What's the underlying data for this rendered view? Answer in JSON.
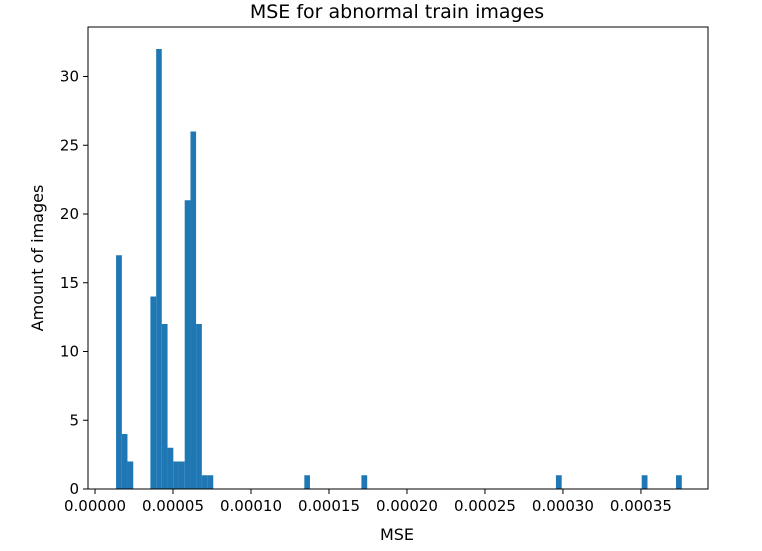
{
  "chart_data": {
    "type": "bar",
    "title": "MSE for abnormal train images",
    "xlabel": "MSE",
    "ylabel": "Amount of images",
    "xlim": [
      -4.5e-06,
      0.000393
    ],
    "ylim": [
      0,
      33.6
    ],
    "grid": false,
    "color": "#1f77b4",
    "xticks": [
      0.0,
      5e-05,
      0.0001,
      0.00015,
      0.0002,
      0.00025,
      0.0003,
      0.00035
    ],
    "xtick_labels": [
      "0.00000",
      "0.00005",
      "0.00010",
      "0.00015",
      "0.00020",
      "0.00025",
      "0.00030",
      "0.00035"
    ],
    "yticks": [
      0,
      5,
      10,
      15,
      20,
      25,
      30
    ],
    "ytick_labels": [
      "0",
      "5",
      "10",
      "15",
      "20",
      "25",
      "30"
    ],
    "bins": [
      {
        "x0": 1.35e-05,
        "x1": 1.72e-05,
        "count": 17
      },
      {
        "x0": 1.72e-05,
        "x1": 2.08e-05,
        "count": 4
      },
      {
        "x0": 2.08e-05,
        "x1": 2.45e-05,
        "count": 2
      },
      {
        "x0": 3.55e-05,
        "x1": 3.92e-05,
        "count": 14
      },
      {
        "x0": 3.92e-05,
        "x1": 4.28e-05,
        "count": 32
      },
      {
        "x0": 4.28e-05,
        "x1": 4.65e-05,
        "count": 12
      },
      {
        "x0": 4.65e-05,
        "x1": 5.02e-05,
        "count": 3
      },
      {
        "x0": 5.02e-05,
        "x1": 5.38e-05,
        "count": 2
      },
      {
        "x0": 5.38e-05,
        "x1": 5.75e-05,
        "count": 2
      },
      {
        "x0": 5.75e-05,
        "x1": 6.12e-05,
        "count": 21
      },
      {
        "x0": 6.12e-05,
        "x1": 6.48e-05,
        "count": 26
      },
      {
        "x0": 6.48e-05,
        "x1": 6.85e-05,
        "count": 12
      },
      {
        "x0": 6.85e-05,
        "x1": 7.22e-05,
        "count": 1
      },
      {
        "x0": 7.22e-05,
        "x1": 7.58e-05,
        "count": 1
      },
      {
        "x0": 0.0001342,
        "x1": 0.0001378,
        "count": 1
      },
      {
        "x0": 0.0001708,
        "x1": 0.0001745,
        "count": 1
      },
      {
        "x0": 0.0002955,
        "x1": 0.0002992,
        "count": 1
      },
      {
        "x0": 0.0003505,
        "x1": 0.0003542,
        "count": 1
      },
      {
        "x0": 0.0003725,
        "x1": 0.0003762,
        "count": 1
      }
    ]
  }
}
